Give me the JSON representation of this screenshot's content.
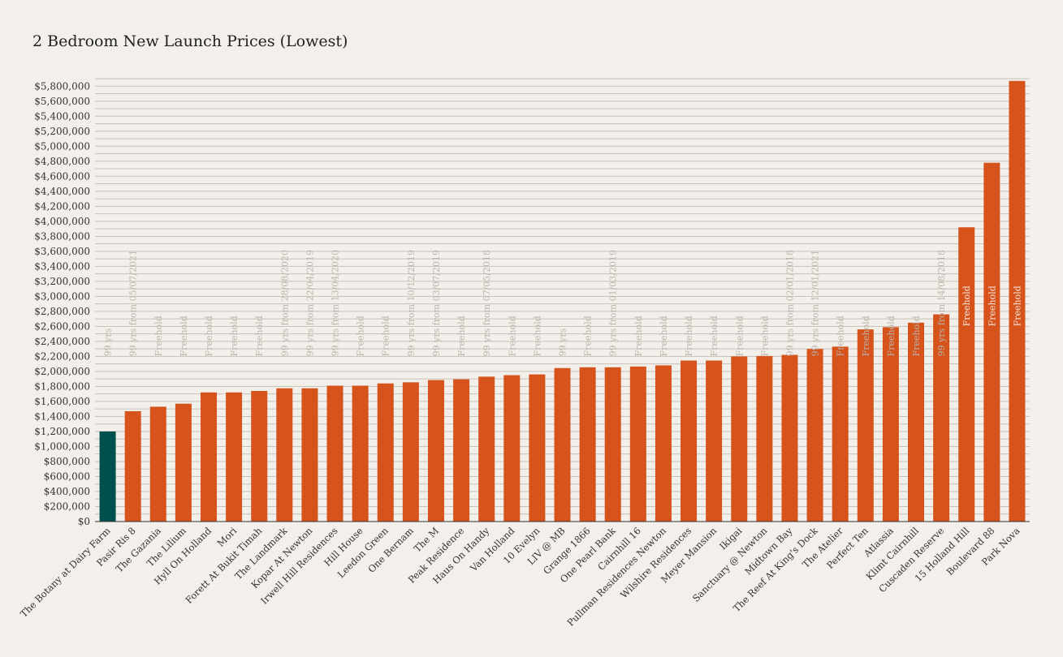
{
  "chart_data": {
    "type": "bar",
    "title": "2 Bedroom New Launch Prices (Lowest)",
    "xlabel": "",
    "ylabel": "",
    "ylim": [
      0,
      5900000
    ],
    "y_ticks": [
      {
        "value": 0,
        "label": "$0"
      },
      {
        "value": 200000,
        "label": "$200,000"
      },
      {
        "value": 400000,
        "label": "$400,000"
      },
      {
        "value": 600000,
        "label": "$600,000"
      },
      {
        "value": 800000,
        "label": "$800,000"
      },
      {
        "value": 1000000,
        "label": "$1,000,000"
      },
      {
        "value": 1200000,
        "label": "$1,200,000"
      },
      {
        "value": 1400000,
        "label": "$1,400,000"
      },
      {
        "value": 1600000,
        "label": "$1,600,000"
      },
      {
        "value": 1800000,
        "label": "$1,800,000"
      },
      {
        "value": 2000000,
        "label": "$2,000,000"
      },
      {
        "value": 2200000,
        "label": "$2,200,000"
      },
      {
        "value": 2400000,
        "label": "$2,400,000"
      },
      {
        "value": 2600000,
        "label": "$2,600,000"
      },
      {
        "value": 2800000,
        "label": "$2,800,000"
      },
      {
        "value": 3000000,
        "label": "$3,000,000"
      },
      {
        "value": 3200000,
        "label": "$3,200,000"
      },
      {
        "value": 3400000,
        "label": "$3,400,000"
      },
      {
        "value": 3600000,
        "label": "$3,600,000"
      },
      {
        "value": 3800000,
        "label": "$3,800,000"
      },
      {
        "value": 4000000,
        "label": "$4,000,000"
      },
      {
        "value": 4200000,
        "label": "$4,200,000"
      },
      {
        "value": 4400000,
        "label": "$4,400,000"
      },
      {
        "value": 4600000,
        "label": "$4,600,000"
      },
      {
        "value": 4800000,
        "label": "$4,800,000"
      },
      {
        "value": 5000000,
        "label": "$5,000,000"
      },
      {
        "value": 5200000,
        "label": "$5,200,000"
      },
      {
        "value": 5400000,
        "label": "$5,400,000"
      },
      {
        "value": 5600000,
        "label": "$5,600,000"
      },
      {
        "value": 5800000,
        "label": "$5,800,000"
      }
    ],
    "minor_grid_step": 100000,
    "grid": true,
    "colors": {
      "highlight": "#00504f",
      "default": "#d6531c",
      "grid": "#c7c1b8",
      "label": "#b9b4ad"
    },
    "highlighted_category": "The Botany at Dairy Farm",
    "categories": [
      "The Botany at Dairy Farm",
      "Pasir Ris 8",
      "The Gazania",
      "The Lilium",
      "Hyll On Holland",
      "Mori",
      "Forett At Bukit Timah",
      "The Landmark",
      "Kopar At Newton",
      "Irwell Hill Residences",
      "Hill House",
      "Leedon Green",
      "One Bernam",
      "The M",
      "Peak Residence",
      "Haus On Handy",
      "Van Holland",
      "10 Evelyn",
      "LIV @ MB",
      "Grange 1866",
      "One Pearl Bank",
      "Cairnhill 16",
      "Pullman Residences Newton",
      "Wilshire Residences",
      "Meyer Mansion",
      "Ikigai",
      "Sanctuary @ Newton",
      "Midtown Bay",
      "The Reef At King's Dock",
      "The Atelier",
      "Perfect Ten",
      "Atlassia",
      "Klimt Cairnhill",
      "Cuscaden Reserve",
      "15 Holland Hill",
      "Boulevard 88",
      "Park Nova"
    ],
    "values": [
      1200000,
      1470000,
      1530000,
      1570000,
      1720000,
      1720000,
      1740000,
      1775000,
      1775000,
      1810000,
      1810000,
      1840000,
      1855000,
      1885000,
      1895000,
      1930000,
      1950000,
      1960000,
      2045000,
      2055000,
      2055000,
      2065000,
      2080000,
      2145000,
      2145000,
      2200000,
      2205000,
      2220000,
      2300000,
      2330000,
      2560000,
      2590000,
      2650000,
      2760000,
      3920000,
      4780000,
      5870000
    ],
    "tenure": [
      "99 yrs",
      "99 yrs from 05/07/2021",
      "Freehold",
      "Freehold",
      "Freehold",
      "Freehold",
      "Freehold",
      "99 yrs from 28/08/2020",
      "99 yrs from 22/04/2019",
      "99 yrs from 13/04/2020",
      "Freehold",
      "Freehold",
      "99 yrs from 10/12/2019",
      "99 yrs from 03/07/2019",
      "Freehold",
      "99 yrs from 07/05/2018",
      "Freehold",
      "Freehold",
      "99 yrs",
      "Freehold",
      "99 yrs from 01/03/2019",
      "Freehold",
      "Freehold",
      "Freehold",
      "Freehold",
      "Freehold",
      "Freehold",
      "99 yrs from 02/01/2018",
      "99 yrs from 12/01/2021",
      "Freehold",
      "Freehold",
      "Freehold",
      "Freehold",
      "99 yrs from 14/08/2018",
      "Freehold",
      "Freehold",
      "Freehold"
    ]
  }
}
